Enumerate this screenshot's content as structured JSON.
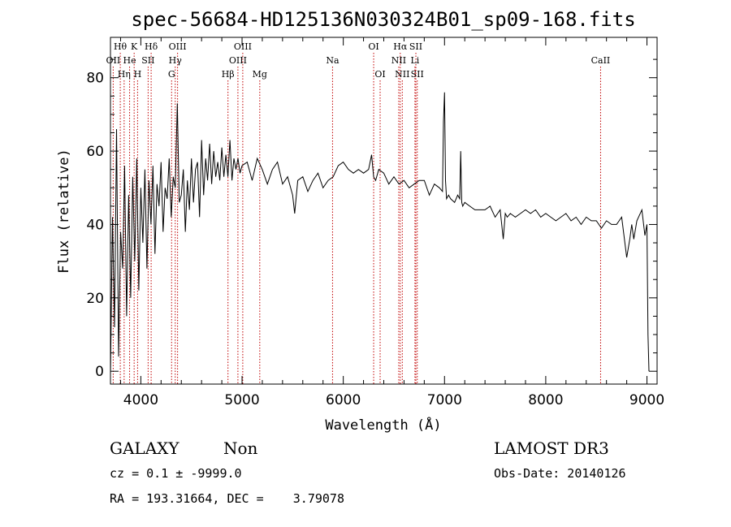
{
  "chart_data": {
    "type": "line",
    "title": "spec-56684-HD125136N030324B01_sp09-168.fits",
    "xlabel": "Wavelength (Å)",
    "ylabel": "Flux (relative)",
    "xlim": [
      3700,
      9100
    ],
    "ylim": [
      -3.5,
      91
    ],
    "x_ticks": [
      4000,
      5000,
      6000,
      7000,
      8000,
      9000
    ],
    "y_ticks": [
      0,
      20,
      40,
      60,
      80
    ],
    "series": [
      {
        "name": "flux",
        "x": [
          3700,
          3720,
          3740,
          3760,
          3780,
          3800,
          3820,
          3840,
          3860,
          3880,
          3900,
          3920,
          3940,
          3960,
          3980,
          4000,
          4020,
          4040,
          4060,
          4080,
          4100,
          4120,
          4140,
          4160,
          4180,
          4200,
          4220,
          4240,
          4260,
          4280,
          4300,
          4320,
          4340,
          4360,
          4380,
          4400,
          4420,
          4440,
          4460,
          4480,
          4500,
          4520,
          4540,
          4560,
          4580,
          4600,
          4620,
          4640,
          4660,
          4680,
          4700,
          4720,
          4740,
          4760,
          4780,
          4800,
          4820,
          4840,
          4860,
          4880,
          4900,
          4920,
          4940,
          4960,
          4980,
          5000,
          5050,
          5100,
          5150,
          5200,
          5250,
          5300,
          5350,
          5400,
          5450,
          5500,
          5520,
          5550,
          5600,
          5650,
          5700,
          5750,
          5800,
          5850,
          5900,
          5950,
          6000,
          6050,
          6100,
          6150,
          6200,
          6250,
          6280,
          6300,
          6320,
          6350,
          6400,
          6450,
          6500,
          6550,
          6600,
          6650,
          6700,
          6750,
          6800,
          6850,
          6900,
          6950,
          6980,
          6990,
          7000,
          7010,
          7020,
          7040,
          7060,
          7100,
          7130,
          7150,
          7160,
          7170,
          7180,
          7200,
          7250,
          7300,
          7350,
          7400,
          7450,
          7500,
          7550,
          7580,
          7600,
          7620,
          7650,
          7700,
          7750,
          7800,
          7850,
          7900,
          7950,
          8000,
          8050,
          8100,
          8150,
          8200,
          8250,
          8300,
          8350,
          8400,
          8450,
          8500,
          8550,
          8600,
          8650,
          8700,
          8750,
          8800,
          8830,
          8850,
          8870,
          8900,
          8950,
          8980,
          9000,
          9010,
          9020
        ],
        "values": [
          -1,
          42,
          12,
          66,
          4,
          38,
          28,
          56,
          15,
          48,
          20,
          53,
          30,
          58,
          22,
          50,
          35,
          55,
          28,
          52,
          40,
          56,
          32,
          51,
          45,
          57,
          38,
          50,
          47,
          58,
          42,
          53,
          50,
          73,
          46,
          48,
          55,
          38,
          52,
          44,
          58,
          46,
          55,
          57,
          42,
          63,
          48,
          58,
          52,
          62,
          51,
          60,
          53,
          57,
          52,
          61,
          53,
          59,
          53,
          63,
          52,
          58,
          55,
          58,
          54,
          56,
          57,
          52,
          58,
          55,
          51,
          55,
          57,
          51,
          53,
          48,
          43,
          52,
          53,
          49,
          52,
          54,
          50,
          52,
          53,
          56,
          57,
          55,
          54,
          55,
          54,
          55,
          59,
          53,
          52,
          55,
          54,
          51,
          53,
          51,
          52,
          50,
          51,
          52,
          52,
          48,
          51,
          50,
          49,
          68,
          76,
          52,
          47,
          48,
          47,
          46,
          48,
          47,
          60,
          46,
          45,
          46,
          45,
          44,
          44,
          44,
          45,
          42,
          44,
          36,
          43,
          42,
          43,
          42,
          43,
          44,
          43,
          44,
          42,
          43,
          42,
          41,
          42,
          43,
          41,
          42,
          40,
          42,
          41,
          41,
          39,
          41,
          40,
          40,
          42,
          31,
          36,
          40,
          36,
          41,
          44,
          37,
          40,
          10,
          0
        ]
      }
    ],
    "emission_lines": [
      {
        "label": "OII",
        "wavelength": 3727,
        "row": 2
      },
      {
        "label": "Hθ",
        "wavelength": 3797,
        "row": 1
      },
      {
        "label": "Hη",
        "wavelength": 3835,
        "row": 3
      },
      {
        "label": "He",
        "wavelength": 3889,
        "row": 2
      },
      {
        "label": "K",
        "wavelength": 3934,
        "row": 1
      },
      {
        "label": "H",
        "wavelength": 3968,
        "row": 3
      },
      {
        "label": "Hδ",
        "wavelength": 4102,
        "row": 1
      },
      {
        "label": "SII",
        "wavelength": 4072,
        "row": 2
      },
      {
        "label": "Hγ",
        "wavelength": 4340,
        "row": 2
      },
      {
        "label": "G",
        "wavelength": 4304,
        "row": 3
      },
      {
        "label": "OIII",
        "wavelength": 4363,
        "row": 1
      },
      {
        "label": "Hβ",
        "wavelength": 4861,
        "row": 3
      },
      {
        "label": "OIII",
        "wavelength": 4959,
        "row": 2
      },
      {
        "label": "OIII",
        "wavelength": 5007,
        "row": 1
      },
      {
        "label": "Mg",
        "wavelength": 5175,
        "row": 3
      },
      {
        "label": "Na",
        "wavelength": 5894,
        "row": 2
      },
      {
        "label": "OI",
        "wavelength": 6300,
        "row": 1
      },
      {
        "label": "OI",
        "wavelength": 6364,
        "row": 3
      },
      {
        "label": "NII",
        "wavelength": 6548,
        "row": 2
      },
      {
        "label": "Hα",
        "wavelength": 6563,
        "row": 1
      },
      {
        "label": "NII",
        "wavelength": 6583,
        "row": 3
      },
      {
        "label": "SII",
        "wavelength": 6717,
        "row": 1
      },
      {
        "label": "SII",
        "wavelength": 6731,
        "row": 3
      },
      {
        "label": "Li",
        "wavelength": 6708,
        "row": 2
      },
      {
        "label": "CaII",
        "wavelength": 8542,
        "row": 2
      }
    ],
    "line_label_font_size": 11
  },
  "info": {
    "class_label": "GALAXY",
    "subclass_label": "Non",
    "survey": "LAMOST DR3",
    "cz_line": "cz = 0.1 ± -9999.0",
    "obs_date": "Obs-Date: 20140126",
    "radec_line": "RA = 193.31664, DEC =    3.79078"
  }
}
